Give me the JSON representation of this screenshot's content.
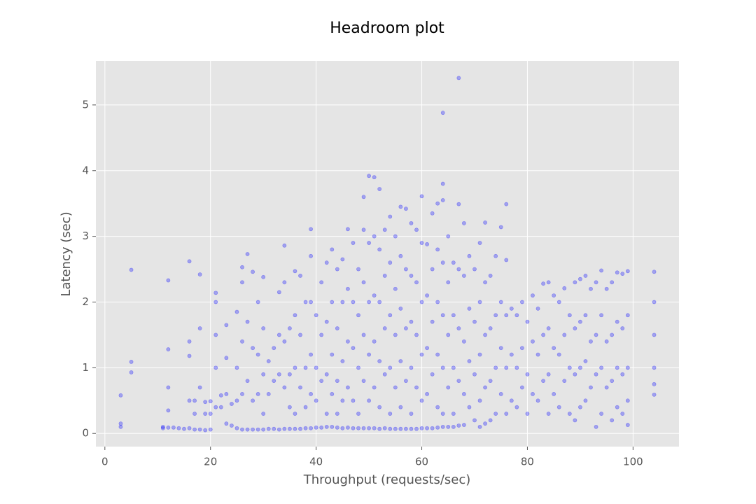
{
  "chart_data": {
    "type": "scatter",
    "title": "Headroom plot",
    "x_label": "Throughput (requests/sec)",
    "y_label": "Latency (sec)",
    "color": "#0000ff",
    "grid": true,
    "xlim": [
      -1.7,
      108.7
    ],
    "ylim": [
      -0.2,
      5.67
    ],
    "xticks": [
      0,
      20,
      40,
      60,
      80,
      100
    ],
    "yticks": [
      0,
      1,
      2,
      3,
      4,
      5
    ],
    "x": [
      3,
      3,
      3,
      5,
      5,
      5,
      11,
      11,
      12,
      12,
      12,
      12,
      12,
      13,
      14,
      15,
      16,
      16,
      16,
      16,
      16,
      17,
      17,
      17,
      18,
      18,
      18,
      18,
      19,
      19,
      19,
      20,
      20,
      20,
      21,
      21,
      21,
      21,
      21,
      22,
      22,
      23,
      23,
      23,
      23,
      24,
      24,
      25,
      25,
      25,
      25,
      26,
      26,
      26,
      26,
      26,
      27,
      27,
      27,
      27,
      28,
      28,
      28,
      28,
      29,
      29,
      29,
      29,
      30,
      30,
      30,
      30,
      30,
      31,
      31,
      31,
      32,
      32,
      32,
      33,
      33,
      33,
      33,
      34,
      34,
      34,
      34,
      34,
      35,
      35,
      35,
      35,
      36,
      36,
      36,
      36,
      36,
      37,
      37,
      37,
      37,
      38,
      38,
      38,
      38,
      39,
      39,
      39,
      39,
      39,
      39,
      40,
      40,
      40,
      40,
      41,
      41,
      41,
      41,
      42,
      42,
      42,
      42,
      42,
      43,
      43,
      43,
      43,
      43,
      44,
      44,
      44,
      44,
      44,
      45,
      45,
      45,
      45,
      45,
      46,
      46,
      46,
      46,
      46,
      47,
      47,
      47,
      47,
      47,
      48,
      48,
      48,
      48,
      48,
      49,
      49,
      49,
      49,
      49,
      49,
      50,
      50,
      50,
      50,
      50,
      50,
      51,
      51,
      51,
      51,
      51,
      51,
      52,
      52,
      52,
      52,
      52,
      52,
      53,
      53,
      53,
      53,
      53,
      54,
      54,
      54,
      54,
      54,
      54,
      55,
      55,
      55,
      55,
      55,
      56,
      56,
      56,
      56,
      56,
      56,
      57,
      57,
      57,
      57,
      57,
      58,
      58,
      58,
      58,
      58,
      58,
      59,
      59,
      59,
      59,
      59,
      60,
      60,
      60,
      60,
      60,
      60,
      61,
      61,
      61,
      61,
      61,
      62,
      62,
      62,
      62,
      62,
      63,
      63,
      63,
      63,
      63,
      63,
      64,
      64,
      64,
      64,
      64,
      64,
      64,
      64,
      65,
      65,
      65,
      65,
      65,
      66,
      66,
      66,
      66,
      66,
      67,
      67,
      67,
      67,
      67,
      67,
      68,
      68,
      68,
      68,
      68,
      69,
      69,
      69,
      69,
      70,
      70,
      70,
      70,
      71,
      71,
      71,
      71,
      71,
      72,
      72,
      72,
      72,
      72,
      73,
      73,
      73,
      73,
      74,
      74,
      74,
      74,
      75,
      75,
      75,
      75,
      76,
      76,
      76,
      76,
      76,
      77,
      77,
      77,
      78,
      78,
      78,
      79,
      79,
      79,
      80,
      80,
      80,
      81,
      81,
      81,
      82,
      82,
      82,
      83,
      83,
      83,
      84,
      84,
      84,
      84,
      85,
      85,
      85,
      86,
      86,
      86,
      87,
      87,
      87,
      88,
      88,
      88,
      89,
      89,
      89,
      89,
      90,
      90,
      90,
      90,
      91,
      91,
      91,
      91,
      92,
      92,
      92,
      93,
      93,
      93,
      93,
      94,
      94,
      94,
      94,
      95,
      95,
      95,
      96,
      96,
      96,
      96,
      97,
      97,
      97,
      97,
      98,
      98,
      98,
      98,
      99,
      99,
      99,
      99,
      99,
      104,
      104,
      104,
      104,
      104,
      104
    ],
    "values": [
      0.58,
      0.15,
      0.1,
      2.49,
      1.09,
      0.93,
      0.1,
      0.08,
      2.33,
      1.28,
      0.7,
      0.35,
      0.09,
      0.09,
      0.08,
      0.07,
      2.62,
      1.4,
      1.18,
      0.5,
      0.08,
      0.5,
      0.3,
      0.06,
      2.42,
      1.6,
      0.7,
      0.06,
      0.48,
      0.3,
      0.05,
      0.49,
      0.3,
      0.06,
      2.14,
      2.0,
      1.5,
      1.0,
      0.4,
      0.58,
      0.4,
      1.65,
      1.15,
      0.6,
      0.15,
      0.45,
      0.12,
      1.85,
      1.0,
      0.5,
      0.08,
      2.53,
      2.3,
      1.4,
      0.6,
      0.06,
      2.73,
      1.7,
      0.8,
      0.06,
      2.46,
      1.3,
      0.5,
      0.06,
      2.0,
      1.2,
      0.6,
      0.06,
      2.38,
      1.6,
      0.9,
      0.3,
      0.06,
      1.1,
      0.6,
      0.07,
      1.3,
      0.8,
      0.07,
      2.15,
      1.5,
      0.9,
      0.06,
      2.86,
      2.3,
      1.4,
      0.7,
      0.07,
      1.6,
      0.9,
      0.4,
      0.07,
      2.47,
      1.8,
      1.0,
      0.3,
      0.07,
      2.4,
      1.5,
      0.7,
      0.07,
      2.0,
      1.0,
      0.4,
      0.08,
      3.11,
      2.7,
      2.0,
      1.2,
      0.6,
      0.08,
      1.8,
      1.0,
      0.5,
      0.09,
      2.3,
      1.5,
      0.8,
      0.09,
      2.6,
      1.7,
      0.9,
      0.3,
      0.1,
      2.8,
      2.0,
      1.2,
      0.6,
      0.1,
      2.5,
      1.6,
      0.8,
      0.3,
      0.09,
      2.65,
      2.0,
      1.1,
      0.5,
      0.08,
      3.11,
      2.2,
      1.4,
      0.7,
      0.09,
      2.9,
      2.0,
      1.3,
      0.5,
      0.08,
      2.5,
      1.8,
      1.0,
      0.3,
      0.08,
      3.6,
      3.1,
      2.3,
      1.5,
      0.8,
      0.08,
      3.92,
      2.9,
      2.0,
      1.2,
      0.5,
      0.08,
      3.9,
      3.0,
      2.1,
      1.4,
      0.7,
      0.08,
      3.72,
      2.8,
      2.0,
      1.1,
      0.4,
      0.07,
      3.1,
      2.4,
      1.6,
      0.9,
      0.08,
      3.3,
      2.6,
      1.8,
      1.0,
      0.3,
      0.07,
      3.0,
      2.2,
      1.5,
      0.7,
      0.07,
      3.45,
      2.7,
      1.9,
      1.1,
      0.4,
      0.07,
      3.42,
      2.5,
      1.6,
      0.8,
      0.07,
      3.2,
      2.4,
      1.7,
      1.0,
      0.3,
      0.07,
      3.1,
      2.3,
      1.5,
      0.7,
      0.07,
      3.61,
      2.9,
      2.0,
      1.2,
      0.5,
      0.08,
      2.88,
      2.1,
      1.3,
      0.6,
      0.08,
      3.35,
      2.5,
      1.7,
      0.9,
      0.08,
      3.5,
      2.8,
      2.0,
      1.2,
      0.4,
      0.09,
      4.88,
      3.8,
      3.55,
      2.6,
      1.8,
      1.0,
      0.3,
      0.1,
      3.0,
      2.3,
      1.5,
      0.7,
      0.1,
      2.6,
      1.8,
      1.0,
      0.3,
      0.1,
      5.41,
      3.49,
      2.5,
      1.6,
      0.8,
      0.12,
      3.2,
      2.4,
      1.4,
      0.6,
      0.13,
      2.7,
      1.9,
      1.1,
      0.4,
      2.5,
      1.7,
      0.9,
      0.2,
      2.9,
      2.0,
      1.2,
      0.5,
      0.1,
      3.21,
      2.3,
      1.5,
      0.7,
      0.15,
      2.4,
      1.6,
      0.8,
      0.2,
      2.7,
      1.8,
      1.0,
      0.3,
      3.14,
      2.0,
      1.3,
      0.6,
      3.49,
      2.64,
      1.8,
      1.0,
      0.3,
      1.9,
      1.2,
      0.5,
      1.8,
      1.0,
      0.4,
      2.0,
      1.3,
      0.7,
      1.7,
      0.9,
      0.3,
      2.1,
      1.4,
      0.6,
      1.9,
      1.2,
      0.5,
      2.28,
      1.5,
      0.8,
      2.3,
      1.6,
      0.9,
      0.3,
      2.1,
      1.3,
      0.6,
      2.0,
      1.2,
      0.4,
      2.21,
      1.5,
      0.8,
      1.8,
      1.0,
      0.3,
      2.3,
      1.6,
      0.9,
      0.2,
      2.35,
      1.7,
      1.0,
      0.4,
      2.4,
      1.8,
      1.1,
      0.5,
      2.2,
      1.4,
      0.7,
      2.3,
      1.5,
      0.9,
      0.1,
      2.48,
      1.8,
      1.0,
      0.3,
      2.2,
      1.4,
      0.7,
      2.3,
      1.5,
      0.8,
      0.2,
      2.45,
      1.7,
      1.0,
      0.4,
      2.43,
      1.6,
      0.9,
      0.3,
      2.47,
      1.8,
      1.0,
      0.5,
      0.13,
      2.46,
      2.0,
      1.5,
      1.0,
      0.75,
      0.59
    ]
  }
}
